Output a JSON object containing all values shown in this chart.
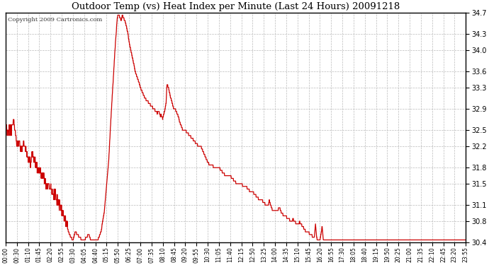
{
  "title": "Outdoor Temp (vs) Heat Index per Minute (Last 24 Hours) 20091218",
  "copyright": "Copyright 2009 Cartronics.com",
  "line_color": "#cc0000",
  "background_color": "#ffffff",
  "grid_color": "#bbbbbb",
  "ylim": [
    30.4,
    34.7
  ],
  "yticks": [
    30.4,
    30.8,
    31.1,
    31.5,
    31.8,
    32.2,
    32.5,
    32.9,
    33.3,
    33.6,
    34.0,
    34.3,
    34.7
  ],
  "xtick_labels": [
    "00:00",
    "00:30",
    "01:10",
    "01:45",
    "02:20",
    "02:55",
    "03:30",
    "04:05",
    "04:40",
    "05:15",
    "05:50",
    "06:25",
    "07:00",
    "07:35",
    "08:10",
    "08:45",
    "09:20",
    "09:55",
    "10:30",
    "11:05",
    "11:40",
    "12:15",
    "12:50",
    "13:25",
    "14:00",
    "14:35",
    "15:10",
    "15:45",
    "16:20",
    "16:55",
    "17:30",
    "18:05",
    "18:40",
    "19:15",
    "19:50",
    "20:25",
    "21:00",
    "21:35",
    "22:10",
    "22:45",
    "23:20",
    "23:55"
  ],
  "key_points": [
    [
      0,
      32.5
    ],
    [
      0.5,
      32.5
    ],
    [
      0.7,
      32.7
    ],
    [
      0.9,
      32.4
    ],
    [
      1.0,
      32.2
    ],
    [
      1.2,
      32.3
    ],
    [
      1.4,
      32.1
    ],
    [
      1.6,
      32.3
    ],
    [
      1.8,
      32.1
    ],
    [
      2.0,
      32.0
    ],
    [
      2.2,
      31.9
    ],
    [
      2.4,
      32.1
    ],
    [
      2.6,
      31.9
    ],
    [
      2.8,
      31.8
    ],
    [
      3.0,
      31.8
    ],
    [
      3.2,
      31.65
    ],
    [
      3.4,
      31.65
    ],
    [
      3.6,
      31.5
    ],
    [
      3.8,
      31.5
    ],
    [
      4.0,
      31.4
    ],
    [
      4.2,
      31.3
    ],
    [
      4.4,
      31.3
    ],
    [
      4.6,
      31.2
    ],
    [
      4.8,
      31.1
    ],
    [
      5.0,
      31.0
    ],
    [
      5.2,
      30.9
    ],
    [
      5.4,
      30.75
    ],
    [
      5.6,
      30.6
    ],
    [
      5.8,
      30.5
    ],
    [
      6.0,
      30.45
    ],
    [
      6.2,
      30.6
    ],
    [
      6.4,
      30.55
    ],
    [
      6.6,
      30.5
    ],
    [
      6.8,
      30.45
    ],
    [
      7.0,
      30.44
    ],
    [
      7.2,
      30.5
    ],
    [
      7.4,
      30.55
    ],
    [
      7.5,
      30.5
    ],
    [
      7.6,
      30.44
    ],
    [
      7.8,
      30.44
    ],
    [
      8.0,
      30.44
    ],
    [
      8.2,
      30.45
    ],
    [
      8.5,
      30.6
    ],
    [
      8.8,
      31.0
    ],
    [
      9.0,
      31.5
    ],
    [
      9.2,
      32.0
    ],
    [
      9.4,
      32.8
    ],
    [
      9.6,
      33.5
    ],
    [
      9.8,
      34.2
    ],
    [
      9.95,
      34.6
    ],
    [
      10.0,
      34.65
    ],
    [
      10.1,
      34.65
    ],
    [
      10.2,
      34.6
    ],
    [
      10.3,
      34.55
    ],
    [
      10.4,
      34.65
    ],
    [
      10.5,
      34.6
    ],
    [
      10.6,
      34.55
    ],
    [
      10.7,
      34.5
    ],
    [
      10.8,
      34.4
    ],
    [
      10.9,
      34.3
    ],
    [
      11.0,
      34.15
    ],
    [
      11.1,
      34.05
    ],
    [
      11.2,
      33.95
    ],
    [
      11.3,
      33.85
    ],
    [
      11.4,
      33.75
    ],
    [
      11.5,
      33.65
    ],
    [
      11.6,
      33.55
    ],
    [
      11.7,
      33.5
    ],
    [
      11.8,
      33.45
    ],
    [
      12.0,
      33.3
    ],
    [
      12.2,
      33.2
    ],
    [
      12.4,
      33.1
    ],
    [
      12.6,
      33.05
    ],
    [
      12.8,
      33.0
    ],
    [
      13.0,
      32.95
    ],
    [
      13.2,
      32.9
    ],
    [
      13.4,
      32.85
    ],
    [
      13.5,
      32.82
    ],
    [
      13.6,
      32.85
    ],
    [
      13.7,
      32.82
    ],
    [
      13.8,
      32.75
    ],
    [
      13.85,
      32.82
    ],
    [
      13.9,
      32.75
    ],
    [
      14.0,
      32.72
    ],
    [
      14.1,
      32.8
    ],
    [
      14.2,
      32.9
    ],
    [
      14.3,
      33.0
    ],
    [
      14.35,
      33.3
    ],
    [
      14.4,
      33.35
    ],
    [
      14.5,
      33.3
    ],
    [
      14.6,
      33.2
    ],
    [
      14.7,
      33.1
    ],
    [
      14.8,
      33.05
    ],
    [
      14.9,
      32.95
    ],
    [
      15.0,
      32.9
    ],
    [
      15.1,
      32.9
    ],
    [
      15.2,
      32.85
    ],
    [
      15.3,
      32.8
    ],
    [
      15.4,
      32.75
    ],
    [
      15.5,
      32.65
    ],
    [
      15.6,
      32.6
    ],
    [
      15.7,
      32.55
    ],
    [
      15.8,
      32.5
    ],
    [
      16.0,
      32.5
    ],
    [
      16.2,
      32.45
    ],
    [
      16.4,
      32.4
    ],
    [
      16.6,
      32.35
    ],
    [
      16.8,
      32.3
    ],
    [
      17.0,
      32.25
    ],
    [
      17.2,
      32.2
    ],
    [
      17.4,
      32.2
    ],
    [
      17.6,
      32.1
    ],
    [
      17.8,
      32.0
    ],
    [
      18.0,
      31.9
    ],
    [
      18.2,
      31.85
    ],
    [
      18.4,
      31.85
    ],
    [
      18.6,
      31.8
    ],
    [
      18.8,
      31.8
    ],
    [
      19.0,
      31.8
    ],
    [
      19.2,
      31.75
    ],
    [
      19.4,
      31.7
    ],
    [
      19.6,
      31.65
    ],
    [
      19.8,
      31.65
    ],
    [
      20.0,
      31.65
    ],
    [
      20.2,
      31.6
    ],
    [
      20.4,
      31.55
    ],
    [
      20.6,
      31.5
    ],
    [
      20.8,
      31.5
    ],
    [
      21.0,
      31.5
    ],
    [
      21.2,
      31.45
    ],
    [
      21.4,
      31.45
    ],
    [
      21.6,
      31.4
    ],
    [
      21.8,
      31.35
    ],
    [
      22.0,
      31.35
    ],
    [
      22.2,
      31.3
    ],
    [
      22.4,
      31.25
    ],
    [
      22.6,
      31.2
    ],
    [
      22.8,
      31.2
    ],
    [
      23.0,
      31.15
    ],
    [
      23.2,
      31.1
    ],
    [
      23.4,
      31.1
    ],
    [
      23.5,
      31.2
    ],
    [
      23.6,
      31.1
    ],
    [
      23.7,
      31.05
    ],
    [
      23.8,
      31.0
    ],
    [
      24.0,
      31.0
    ],
    [
      24.2,
      31.0
    ],
    [
      24.4,
      31.05
    ],
    [
      24.5,
      31.0
    ],
    [
      24.6,
      30.95
    ],
    [
      24.8,
      30.9
    ],
    [
      25.0,
      30.88
    ],
    [
      25.2,
      30.85
    ],
    [
      25.4,
      30.8
    ],
    [
      25.5,
      30.78
    ],
    [
      25.6,
      30.85
    ],
    [
      25.7,
      30.8
    ],
    [
      25.8,
      30.78
    ],
    [
      26.0,
      30.75
    ],
    [
      26.2,
      30.78
    ],
    [
      26.3,
      30.75
    ],
    [
      26.4,
      30.72
    ],
    [
      26.5,
      30.7
    ],
    [
      26.6,
      30.65
    ],
    [
      26.8,
      30.6
    ],
    [
      27.0,
      30.58
    ],
    [
      27.2,
      30.55
    ],
    [
      27.4,
      30.5
    ],
    [
      27.5,
      30.5
    ],
    [
      27.6,
      30.75
    ],
    [
      27.7,
      30.5
    ],
    [
      27.8,
      30.45
    ],
    [
      28.0,
      30.44
    ],
    [
      28.2,
      30.7
    ],
    [
      28.3,
      30.45
    ],
    [
      28.4,
      30.44
    ],
    [
      29.0,
      30.44
    ],
    [
      41.0,
      30.44
    ]
  ]
}
